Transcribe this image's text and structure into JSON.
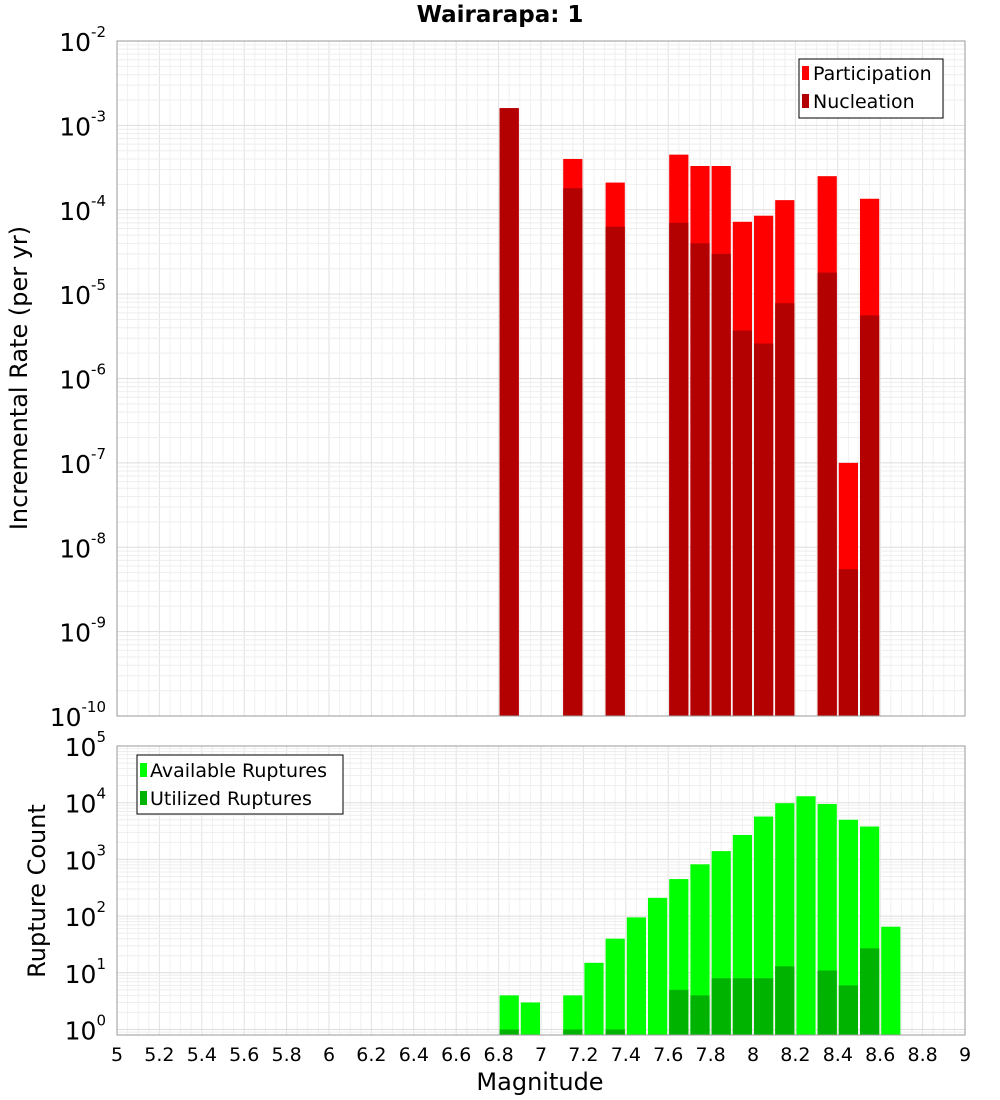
{
  "chart_data": [
    {
      "type": "bar",
      "title": "Wairarapa: 1",
      "ylabel": "Incremental Rate (per yr)",
      "xlabel": "",
      "xlim": [
        5,
        9
      ],
      "ylim": [
        1e-10,
        0.01
      ],
      "yscale": "log",
      "y_ticks": [
        {
          "base": "10",
          "exp": "-2"
        },
        {
          "base": "10",
          "exp": "-3"
        },
        {
          "base": "10",
          "exp": "-4"
        },
        {
          "base": "10",
          "exp": "-5"
        },
        {
          "base": "10",
          "exp": "-6"
        },
        {
          "base": "10",
          "exp": "-7"
        },
        {
          "base": "10",
          "exp": "-8"
        },
        {
          "base": "10",
          "exp": "-9"
        },
        {
          "base": "10",
          "exp": "-10"
        }
      ],
      "grid": true,
      "legend_position": "top-right",
      "series": [
        {
          "name": "Participation",
          "color": "#ff0000",
          "x": [
            6.85,
            7.15,
            7.35,
            7.65,
            7.75,
            7.85,
            7.95,
            8.05,
            8.15,
            8.35,
            8.45,
            8.55
          ],
          "values": [
            0.0016,
            0.0004,
            0.00021,
            0.00045,
            0.00033,
            0.00033,
            7.2e-05,
            8.5e-05,
            0.00013,
            0.00025,
            1e-07,
            0.000135
          ]
        },
        {
          "name": "Nucleation",
          "color": "#b30000",
          "x": [
            6.85,
            7.15,
            7.35,
            7.65,
            7.75,
            7.85,
            7.95,
            8.05,
            8.15,
            8.35,
            8.45,
            8.55
          ],
          "values": [
            0.0016,
            0.00018,
            6.3e-05,
            7e-05,
            4e-05,
            3e-05,
            3.7e-06,
            2.6e-06,
            7.8e-06,
            1.8e-05,
            5.5e-09,
            5.6e-06
          ]
        }
      ]
    },
    {
      "type": "bar",
      "title": "",
      "ylabel": "Rupture Count",
      "xlabel": "Magnitude",
      "xlim": [
        5,
        9
      ],
      "ylim": [
        0.8,
        100000
      ],
      "yscale": "log",
      "y_ticks": [
        {
          "base": "10",
          "exp": "5"
        },
        {
          "base": "10",
          "exp": "4"
        },
        {
          "base": "10",
          "exp": "3"
        },
        {
          "base": "10",
          "exp": "2"
        },
        {
          "base": "10",
          "exp": "1"
        },
        {
          "base": "10",
          "exp": "0"
        }
      ],
      "x_tick_labels": [
        "5",
        "5.2",
        "5.4",
        "5.6",
        "5.8",
        "6",
        "6.2",
        "6.4",
        "6.6",
        "6.8",
        "7",
        "7.2",
        "7.4",
        "7.6",
        "7.8",
        "8",
        "8.2",
        "8.4",
        "8.6",
        "8.8",
        "9"
      ],
      "grid": true,
      "legend_position": "top-left",
      "series": [
        {
          "name": "Available Ruptures",
          "color": "#00ff00",
          "x": [
            6.85,
            6.95,
            7.15,
            7.25,
            7.35,
            7.45,
            7.55,
            7.65,
            7.75,
            7.85,
            7.95,
            8.05,
            8.15,
            8.25,
            8.35,
            8.45,
            8.55,
            8.65
          ],
          "values": [
            4,
            3,
            4,
            15,
            40,
            95,
            210,
            450,
            820,
            1400,
            2700,
            5700,
            9800,
            13000,
            9500,
            5000,
            3800,
            65
          ]
        },
        {
          "name": "Utilized Ruptures",
          "color": "#00b300",
          "x": [
            6.85,
            7.15,
            7.35,
            7.65,
            7.75,
            7.85,
            7.95,
            8.05,
            8.15,
            8.35,
            8.45,
            8.55
          ],
          "values": [
            1,
            1,
            1,
            5,
            4,
            8,
            8,
            8,
            13,
            11,
            6,
            27
          ]
        }
      ]
    }
  ]
}
